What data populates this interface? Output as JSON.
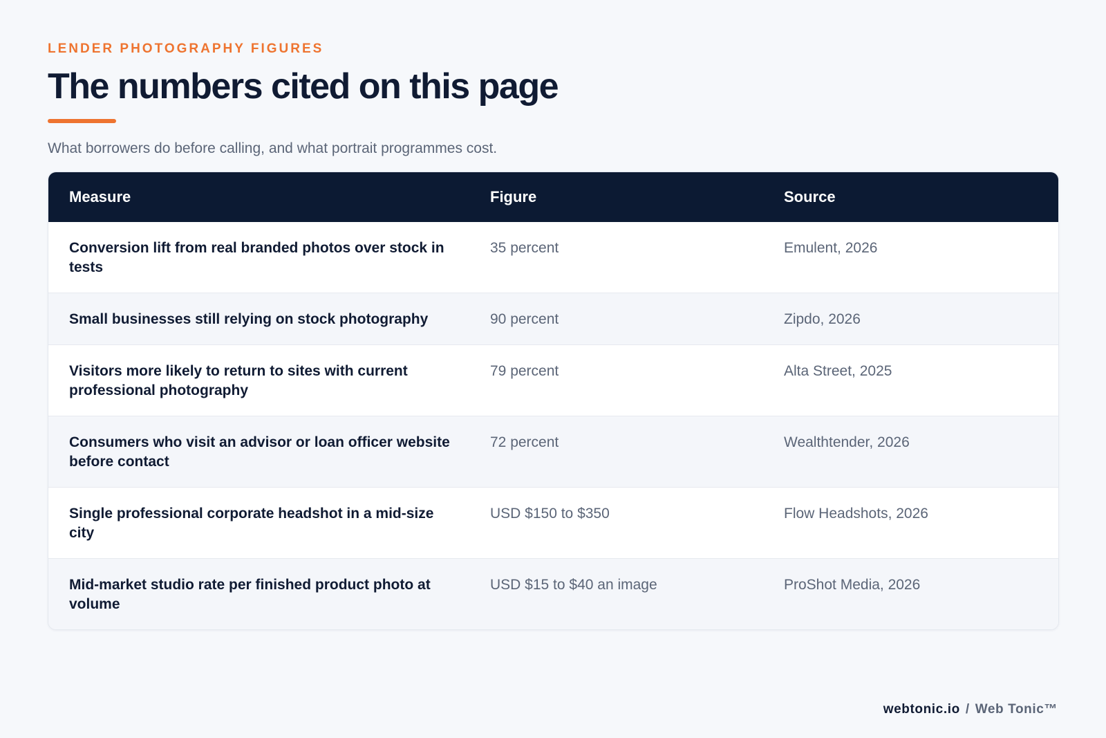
{
  "header": {
    "eyebrow": "LENDER PHOTOGRAPHY FIGURES",
    "title": "The numbers cited on this page",
    "subtitle": "What borrowers do before calling, and what portrait programmes cost."
  },
  "table": {
    "columns": [
      "Measure",
      "Figure",
      "Source"
    ],
    "rows": [
      {
        "measure": "Conversion lift from real branded photos over stock in tests",
        "figure": "35 percent",
        "source": "Emulent, 2026"
      },
      {
        "measure": "Small businesses still relying on stock photography",
        "figure": "90 percent",
        "source": "Zipdo, 2026"
      },
      {
        "measure": "Visitors more likely to return to sites with current professional photography",
        "figure": "79 percent",
        "source": "Alta Street, 2025"
      },
      {
        "measure": "Consumers who visit an advisor or loan officer website before contact",
        "figure": "72 percent",
        "source": "Wealthtender, 2026"
      },
      {
        "measure": "Single professional corporate headshot in a mid-size city",
        "figure": "USD $150 to $350",
        "source": "Flow Headshots, 2026"
      },
      {
        "measure": "Mid-market studio rate per finished product photo at volume",
        "figure": "USD $15 to $40 an image",
        "source": "ProShot Media, 2026"
      }
    ]
  },
  "footer": {
    "site": "webtonic.io",
    "separator": "/",
    "brand": "Web Tonic™"
  },
  "colors": {
    "accent": "#ee7430",
    "header_bg": "#0c1a33",
    "page_bg": "#f6f8fb"
  }
}
